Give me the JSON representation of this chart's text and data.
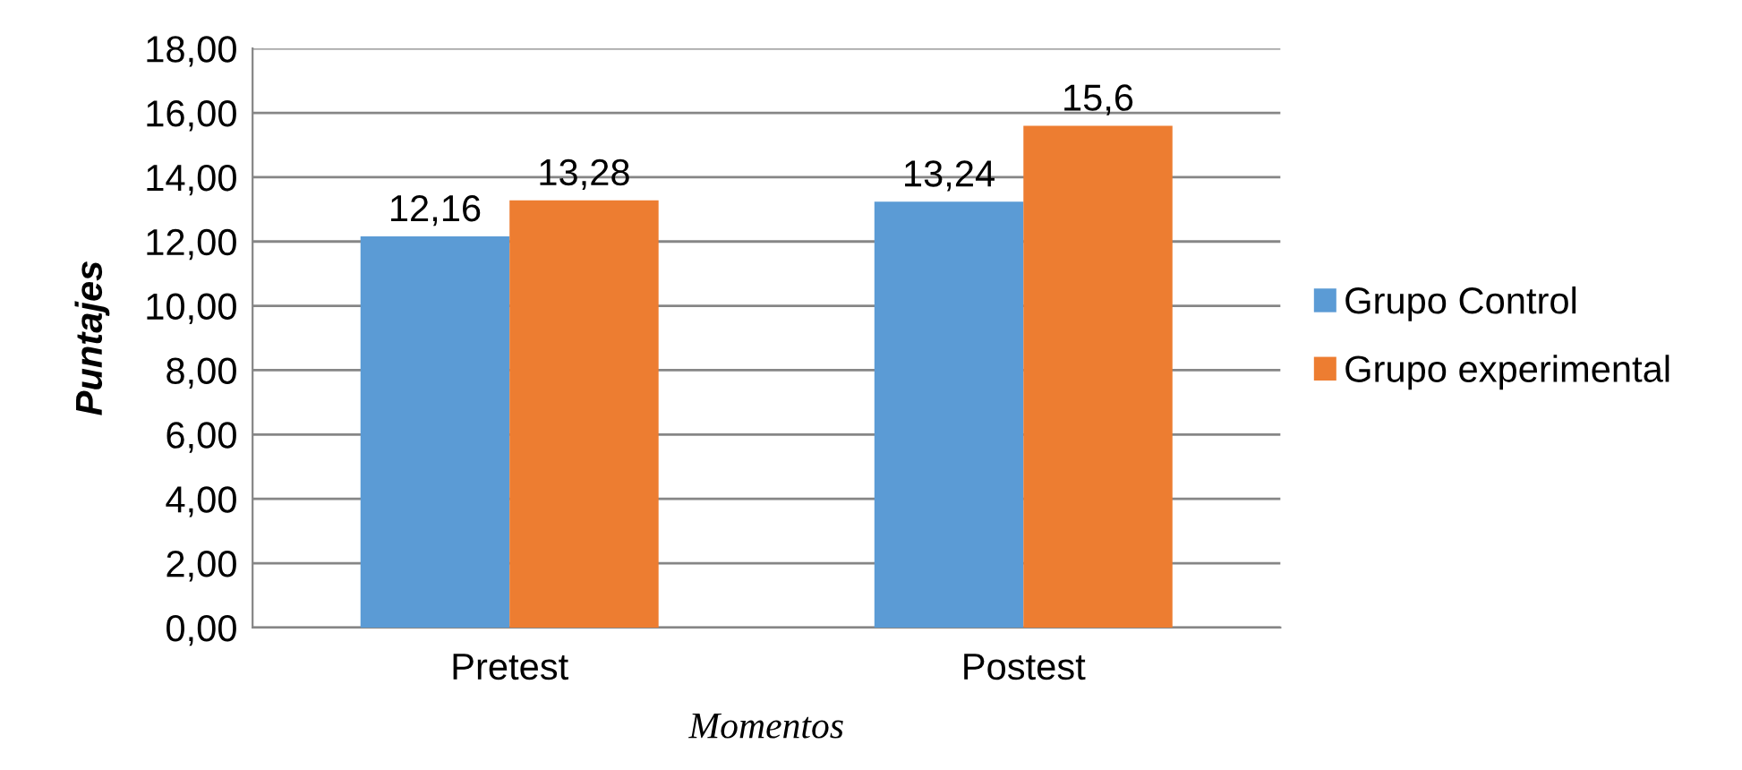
{
  "chart_data": {
    "type": "bar",
    "categories": [
      "Pretest",
      "Postest"
    ],
    "series": [
      {
        "name": "Grupo Control",
        "color": "#5b9bd5",
        "values": [
          12.16,
          13.24
        ],
        "value_labels": [
          "12,16",
          "13,24"
        ]
      },
      {
        "name": "Grupo experimental",
        "color": "#ed7d31",
        "values": [
          13.28,
          15.6
        ],
        "value_labels": [
          "13,28",
          "15,6"
        ]
      }
    ],
    "xlabel": "Momentos",
    "ylabel": "Puntajes",
    "ylim": [
      0,
      18
    ],
    "yticks": [
      {
        "value": 0,
        "label": "0,00"
      },
      {
        "value": 2,
        "label": "2,00"
      },
      {
        "value": 4,
        "label": "4,00"
      },
      {
        "value": 6,
        "label": "6,00"
      },
      {
        "value": 8,
        "label": "8,00"
      },
      {
        "value": 10,
        "label": "10,00"
      },
      {
        "value": 12,
        "label": "12,00"
      },
      {
        "value": 14,
        "label": "14,00"
      },
      {
        "value": 16,
        "label": "16,00"
      },
      {
        "value": 18,
        "label": "18,00"
      }
    ],
    "grid": "y",
    "legend": "right"
  }
}
